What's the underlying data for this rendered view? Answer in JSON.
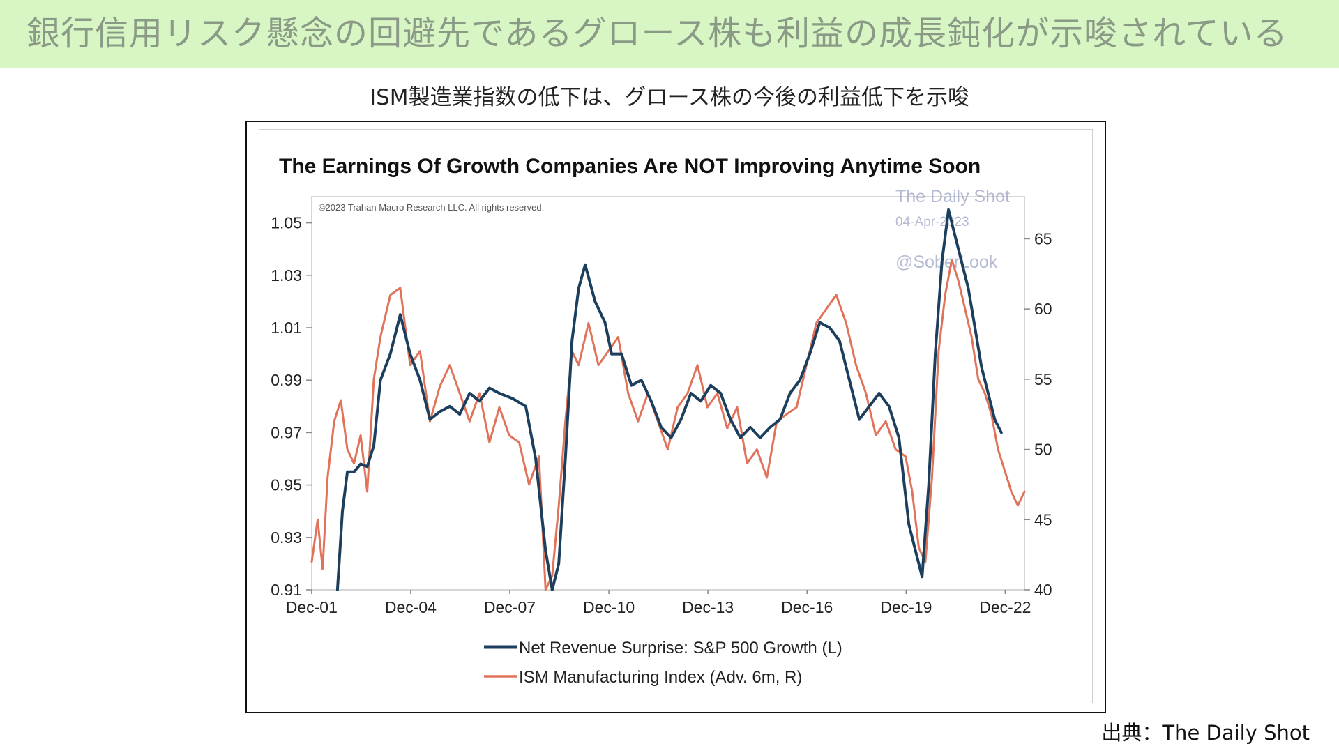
{
  "header": {
    "title": "銀行信用リスク懸念の回避先であるグロース株も利益の成長鈍化が示唆されている",
    "subtitle": "ISM製造業指数の低下は、グロース株の今後の利益低下を示唆",
    "source": "出典：The Daily Shot",
    "banner_color": "#d8f5c4"
  },
  "chart_data": {
    "type": "line",
    "title": "The Earnings Of Growth Companies Are NOT Improving Anytime Soon",
    "copyright": "©2023 Trahan Macro Research LLC. All rights reserved.",
    "watermark": [
      "The Daily Shot",
      "04-Apr-2023",
      "@SoberLook"
    ],
    "x_ticks": [
      "Dec-01",
      "Dec-04",
      "Dec-07",
      "Dec-10",
      "Dec-13",
      "Dec-16",
      "Dec-19",
      "Dec-22"
    ],
    "xlim": [
      2001.92,
      2023.5
    ],
    "y_left": {
      "ylim": [
        0.91,
        1.06
      ],
      "ticks": [
        "0.91",
        "0.93",
        "0.95",
        "0.97",
        "0.99",
        "1.01",
        "1.03",
        "1.05"
      ]
    },
    "y_right": {
      "ylim": [
        40,
        68
      ],
      "ticks": [
        "40",
        "45",
        "50",
        "55",
        "60",
        "65"
      ]
    },
    "grid": false,
    "legend_position": "bottom",
    "series": [
      {
        "name": "Net Revenue Surprise: S&P 500 Growth (L)",
        "axis": "left",
        "color": "#1d3f5e",
        "x": [
          2002.7,
          2002.85,
          2003.0,
          2003.2,
          2003.4,
          2003.6,
          2003.8,
          2004.0,
          2004.3,
          2004.6,
          2004.9,
          2005.2,
          2005.5,
          2005.8,
          2006.1,
          2006.4,
          2006.7,
          2007.0,
          2007.3,
          2007.6,
          2008.0,
          2008.4,
          2008.7,
          2009.0,
          2009.2,
          2009.4,
          2009.6,
          2009.8,
          2010.0,
          2010.2,
          2010.5,
          2010.8,
          2011.0,
          2011.3,
          2011.6,
          2011.9,
          2012.2,
          2012.5,
          2012.8,
          2013.1,
          2013.4,
          2013.7,
          2014.0,
          2014.3,
          2014.6,
          2014.9,
          2015.2,
          2015.5,
          2015.8,
          2016.1,
          2016.4,
          2016.7,
          2017.0,
          2017.3,
          2017.6,
          2017.9,
          2018.2,
          2018.5,
          2018.8,
          2019.1,
          2019.4,
          2019.7,
          2020.0,
          2020.2,
          2020.4,
          2020.6,
          2020.8,
          2021.0,
          2021.2,
          2021.4,
          2021.6,
          2021.8,
          2022.0,
          2022.2,
          2022.4,
          2022.6,
          2022.8,
          2023.0
        ],
        "y": [
          0.905,
          0.94,
          0.955,
          0.955,
          0.958,
          0.957,
          0.965,
          0.99,
          1.0,
          1.015,
          1.0,
          0.99,
          0.975,
          0.978,
          0.98,
          0.977,
          0.985,
          0.982,
          0.987,
          0.985,
          0.983,
          0.98,
          0.96,
          0.925,
          0.905,
          0.92,
          0.96,
          1.005,
          1.025,
          1.034,
          1.02,
          1.012,
          1.0,
          1.0,
          0.988,
          0.99,
          0.982,
          0.972,
          0.968,
          0.975,
          0.985,
          0.982,
          0.988,
          0.985,
          0.975,
          0.968,
          0.972,
          0.968,
          0.972,
          0.975,
          0.985,
          0.99,
          1.0,
          1.012,
          1.01,
          1.005,
          0.99,
          0.975,
          0.98,
          0.985,
          0.98,
          0.968,
          0.935,
          0.925,
          0.915,
          0.95,
          1.0,
          1.035,
          1.055,
          1.045,
          1.035,
          1.025,
          1.01,
          0.995,
          0.985,
          0.975,
          0.97,
          null
        ]
      },
      {
        "name": "ISM Manufacturing Index (Adv. 6m, R)",
        "axis": "right",
        "color": "#e0735a",
        "x": [
          2001.92,
          2002.1,
          2002.25,
          2002.4,
          2002.6,
          2002.8,
          2003.0,
          2003.2,
          2003.4,
          2003.6,
          2003.8,
          2004.0,
          2004.3,
          2004.6,
          2004.9,
          2005.2,
          2005.5,
          2005.8,
          2006.1,
          2006.4,
          2006.7,
          2007.0,
          2007.3,
          2007.6,
          2007.9,
          2008.2,
          2008.5,
          2008.8,
          2009.0,
          2009.2,
          2009.4,
          2009.6,
          2009.8,
          2010.0,
          2010.3,
          2010.6,
          2010.9,
          2011.2,
          2011.5,
          2011.8,
          2012.1,
          2012.4,
          2012.7,
          2013.0,
          2013.3,
          2013.6,
          2013.9,
          2014.2,
          2014.5,
          2014.8,
          2015.1,
          2015.4,
          2015.7,
          2016.0,
          2016.3,
          2016.6,
          2016.9,
          2017.2,
          2017.5,
          2017.8,
          2018.1,
          2018.4,
          2018.7,
          2019.0,
          2019.3,
          2019.6,
          2019.9,
          2020.1,
          2020.3,
          2020.5,
          2020.7,
          2020.9,
          2021.1,
          2021.3,
          2021.5,
          2021.7,
          2021.9,
          2022.1,
          2022.3,
          2022.5,
          2022.7,
          2022.9,
          2023.1,
          2023.3,
          2023.5
        ],
        "y": [
          42.0,
          45.0,
          41.5,
          48.0,
          52.0,
          53.5,
          50.0,
          49.0,
          51.0,
          47.0,
          55.0,
          58.0,
          61.0,
          61.5,
          56.0,
          57.0,
          52.0,
          54.5,
          56.0,
          54.0,
          52.0,
          54.0,
          50.5,
          53.0,
          51.0,
          50.5,
          47.5,
          49.5,
          40.0,
          41.0,
          46.0,
          52.0,
          57.0,
          56.0,
          59.0,
          56.0,
          57.0,
          58.0,
          54.0,
          52.0,
          54.0,
          52.0,
          50.0,
          53.0,
          54.0,
          56.0,
          53.0,
          54.0,
          51.5,
          53.0,
          49.0,
          50.0,
          48.0,
          52.0,
          52.5,
          53.0,
          56.0,
          59.0,
          60.0,
          61.0,
          59.0,
          56.0,
          54.0,
          51.0,
          52.0,
          50.0,
          49.5,
          47.0,
          43.0,
          42.0,
          48.0,
          57.0,
          61.0,
          63.5,
          62.0,
          60.0,
          58.0,
          55.0,
          54.0,
          52.5,
          50.0,
          48.5,
          47.0,
          46.0,
          47.0
        ]
      }
    ]
  }
}
